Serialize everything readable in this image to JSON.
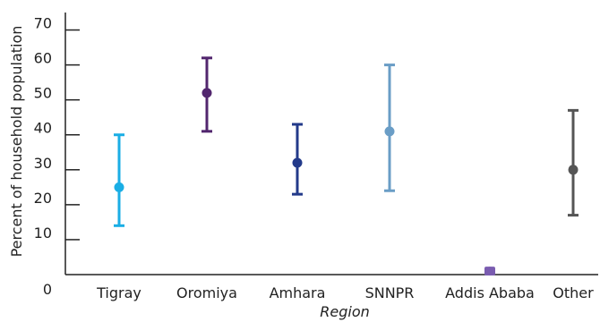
{
  "chart_data": {
    "type": "scatter",
    "subtype": "error-bar",
    "xlabel": "Region",
    "ylabel": "Percent of household population",
    "ylim": [
      0,
      75
    ],
    "yticks": [
      0,
      10,
      20,
      30,
      40,
      50,
      60,
      70
    ],
    "grid": false,
    "legend": "none",
    "categories": [
      "Tigray",
      "Oromiya",
      "Amhara",
      "SNNPR",
      "Addis Ababa",
      "Other"
    ],
    "points": [
      {
        "category": "Tigray",
        "value": 25,
        "low": 14,
        "high": 40,
        "color": "#1aaee5"
      },
      {
        "category": "Oromiya",
        "value": 52,
        "low": 41,
        "high": 62,
        "color": "#52266e"
      },
      {
        "category": "Amhara",
        "value": 32,
        "low": 23,
        "high": 43,
        "color": "#233a8a"
      },
      {
        "category": "SNNPR",
        "value": 41,
        "low": 24,
        "high": 60,
        "color": "#6a9dc6"
      },
      {
        "category": "Addis Ababa",
        "value": 1,
        "low": 0.5,
        "high": 2,
        "color": "#7a5cb0"
      },
      {
        "category": "Other",
        "value": 30,
        "low": 17,
        "high": 47,
        "color": "#555555"
      }
    ]
  }
}
